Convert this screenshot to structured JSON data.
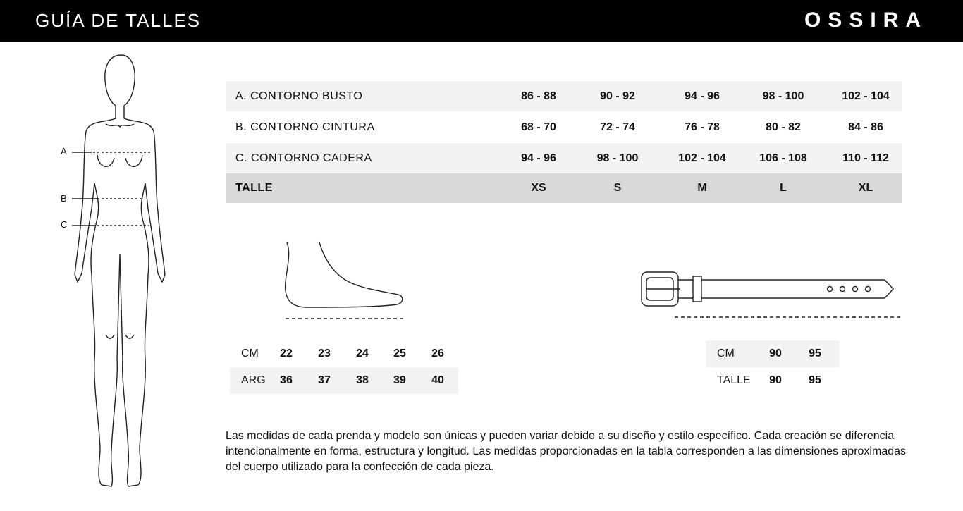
{
  "header": {
    "title": "GUÍA DE TALLES",
    "brand": "OSSIRA"
  },
  "figure": {
    "markers": [
      "A",
      "B",
      "C"
    ]
  },
  "size_table": {
    "rows": [
      {
        "label": "A.  CONTORNO BUSTO",
        "values": [
          "86 - 88",
          "90 - 92",
          "94 - 96",
          "98 - 100",
          "102 - 104"
        ]
      },
      {
        "label": "B.  CONTORNO CINTURA",
        "values": [
          "68 - 70",
          "72 - 74",
          "76 - 78",
          "80 - 82",
          "84 - 86"
        ]
      },
      {
        "label": "C.  CONTORNO CADERA",
        "values": [
          "94 - 96",
          "98 - 100",
          "102 - 104",
          "106 - 108",
          "110 - 112"
        ]
      }
    ],
    "size_row": {
      "label": "TALLE",
      "values": [
        "XS",
        "S",
        "M",
        "L",
        "XL"
      ]
    }
  },
  "shoe_table": {
    "rows": [
      {
        "label": "CM",
        "values": [
          "22",
          "23",
          "24",
          "25",
          "26"
        ]
      },
      {
        "label": "ARG",
        "values": [
          "36",
          "37",
          "38",
          "39",
          "40"
        ]
      }
    ]
  },
  "belt_table": {
    "rows": [
      {
        "label": "CM",
        "values": [
          "90",
          "95"
        ]
      },
      {
        "label": "TALLE",
        "values": [
          "90",
          "95"
        ]
      }
    ]
  },
  "note": "Las medidas de cada prenda y modelo son únicas y pueden variar debido a su diseño y estilo específico. Cada creación se diferencia intencionalmente en forma, estructura y longitud. Las medidas proporcionadas en la tabla corresponden a las dimensiones aproximadas del cuerpo utilizado para la confección de cada pieza."
}
